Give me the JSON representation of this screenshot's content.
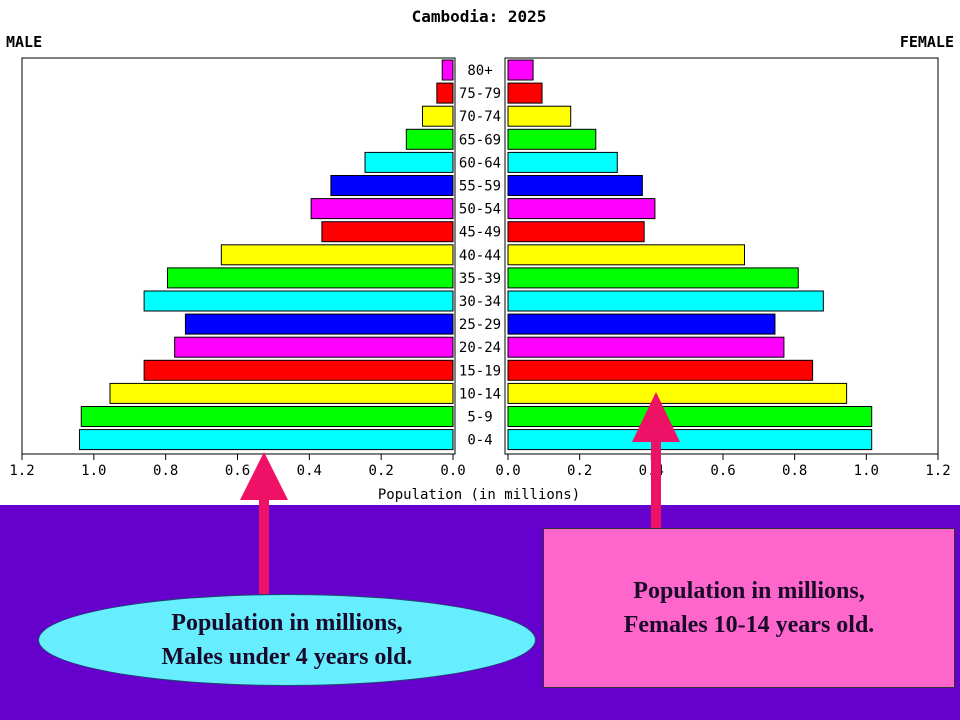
{
  "chart_data": {
    "type": "bar",
    "title": "Cambodia: 2025",
    "left_label": "MALE",
    "right_label": "FEMALE",
    "xlabel": "Population (in millions)",
    "xlim": [
      0,
      1.2
    ],
    "ticks": [
      "1.2",
      "1.0",
      "0.8",
      "0.6",
      "0.4",
      "0.2",
      "0.0",
      "0.0",
      "0.2",
      "0.4",
      "0.6",
      "0.8",
      "1.0",
      "1.2"
    ],
    "categories": [
      "80+",
      "75-79",
      "70-74",
      "65-69",
      "60-64",
      "55-59",
      "50-54",
      "45-49",
      "40-44",
      "35-39",
      "30-34",
      "25-29",
      "20-24",
      "15-19",
      "10-14",
      "5-9",
      "0-4"
    ],
    "series": [
      {
        "name": "MALE",
        "values": [
          0.03,
          0.045,
          0.085,
          0.13,
          0.245,
          0.34,
          0.395,
          0.365,
          0.645,
          0.795,
          0.86,
          0.745,
          0.775,
          0.86,
          0.955,
          1.035,
          1.04
        ]
      },
      {
        "name": "FEMALE",
        "values": [
          0.07,
          0.095,
          0.175,
          0.245,
          0.305,
          0.375,
          0.41,
          0.38,
          0.66,
          0.81,
          0.88,
          0.745,
          0.77,
          0.85,
          0.945,
          1.015,
          1.015
        ]
      }
    ],
    "colors": [
      "#ff00ff",
      "#ff0000",
      "#ffff00",
      "#00ff00",
      "#00ffff",
      "#0000ff",
      "#ff00ff",
      "#ff0000",
      "#ffff00",
      "#00ff00",
      "#00ffff",
      "#0000ff",
      "#ff00ff",
      "#ff0000",
      "#ffff00",
      "#00ff00",
      "#00ffff"
    ],
    "grid": false
  },
  "callouts": {
    "male": {
      "line1": "Population in millions,",
      "line2": "Males under 4 years old."
    },
    "female": {
      "line1": "Population in millions,",
      "line2": "Females 10-14 years old."
    }
  },
  "arrow_color": "#ee1166",
  "background_color": "#6600cc"
}
